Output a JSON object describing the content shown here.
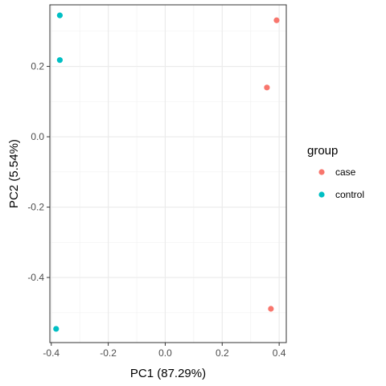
{
  "chart_data": {
    "type": "scatter",
    "xlabel": "PC1 (87.29%)",
    "ylabel": "PC2 (5.54%)",
    "xlim": [
      -0.405,
      0.425
    ],
    "ylim": [
      -0.585,
      0.375
    ],
    "x_ticks": [
      -0.4,
      -0.2,
      0.0,
      0.2,
      0.4
    ],
    "x_tick_labels": [
      "-0.4",
      "-0.2",
      "0.0",
      "0.2",
      "0.4"
    ],
    "y_ticks": [
      -0.4,
      -0.2,
      0.0,
      0.2
    ],
    "y_tick_labels": [
      "-0.4",
      "-0.2",
      "0.0",
      "0.2"
    ],
    "grid": true,
    "legend": {
      "title": "group",
      "position": "right"
    },
    "series": [
      {
        "name": "case",
        "color": "#F8766D",
        "points": [
          {
            "x": 0.391,
            "y": 0.331
          },
          {
            "x": 0.357,
            "y": 0.14
          },
          {
            "x": 0.371,
            "y": -0.489
          }
        ]
      },
      {
        "name": "control",
        "color": "#00BFC4",
        "points": [
          {
            "x": -0.37,
            "y": 0.345
          },
          {
            "x": -0.37,
            "y": 0.218
          },
          {
            "x": -0.383,
            "y": -0.546
          }
        ]
      }
    ]
  }
}
